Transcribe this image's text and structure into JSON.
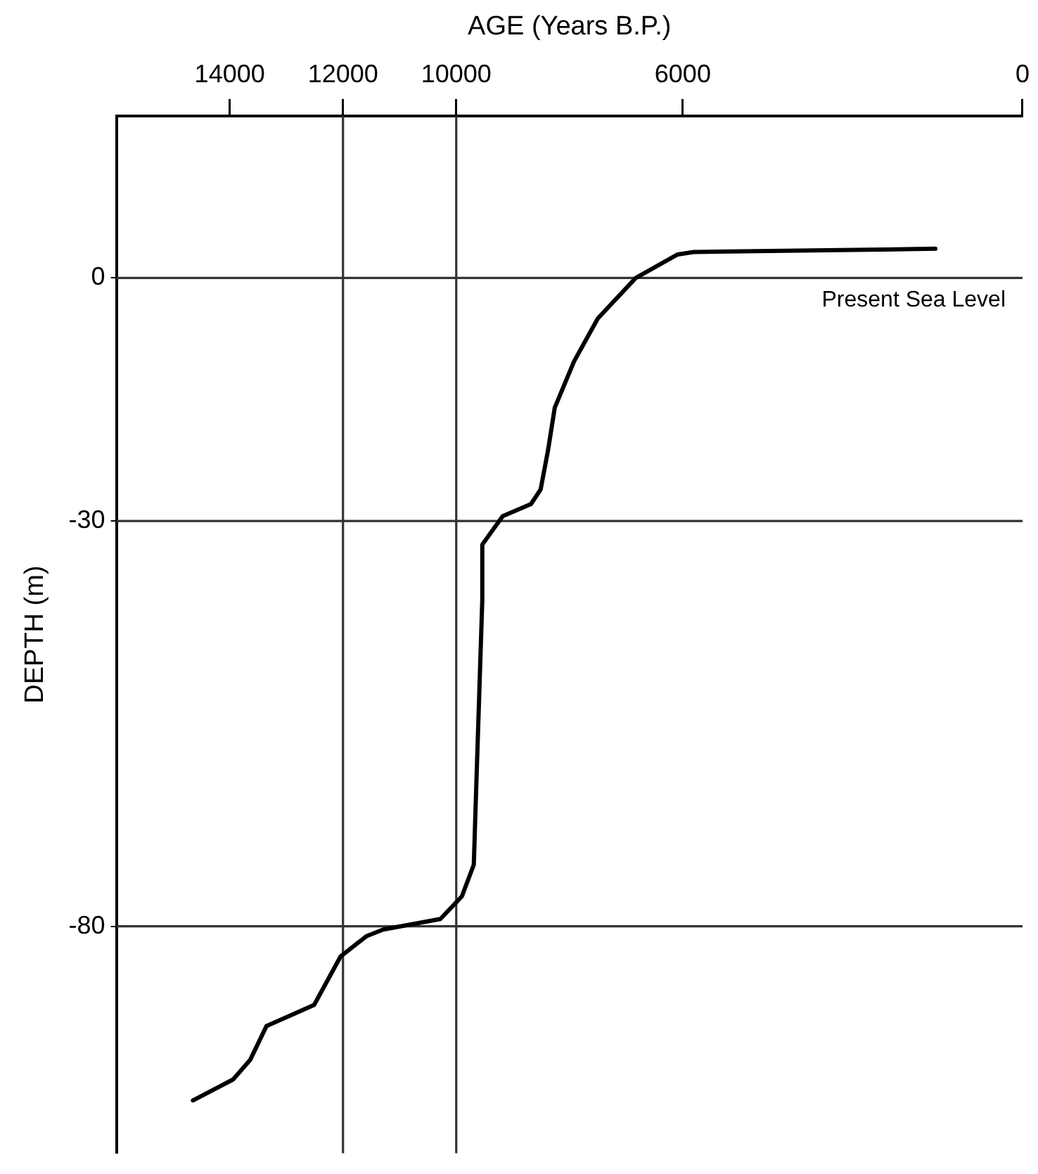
{
  "chart_data": {
    "type": "line",
    "xlabel": "AGE (Years B.P.)",
    "ylabel": "DEPTH (m)",
    "xlim": [
      16000,
      0
    ],
    "xticks": [
      14000,
      12000,
      10000,
      6000,
      0
    ],
    "ylim": [
      -108,
      20
    ],
    "yticks": [
      0,
      -30,
      -80
    ],
    "grid": false,
    "legend": false,
    "marker": "none",
    "line_style": "solid",
    "ref_lines": [
      {
        "axis": "y",
        "value": 0,
        "label": "Present Sea Level"
      },
      {
        "axis": "y",
        "value": -30
      },
      {
        "axis": "y",
        "value": -80
      },
      {
        "axis": "x",
        "value": 12000
      },
      {
        "axis": "x",
        "value": 10000
      }
    ],
    "series": [
      {
        "color": "#000000",
        "x": [
          14650,
          13940,
          13640,
          13350,
          12510,
          12040,
          11580,
          11290,
          10280,
          9900,
          9690,
          9650,
          9540,
          9540,
          9180,
          8680,
          8510,
          8380,
          8260,
          7920,
          7500,
          6830,
          6090,
          5810,
          1540
        ],
        "values": [
          -101.5,
          -98.9,
          -96.5,
          -92.3,
          -89.7,
          -83.7,
          -81.2,
          -80.4,
          -79.1,
          -76.3,
          -72.4,
          -63.5,
          -39.7,
          -32.9,
          -29.4,
          -27.9,
          -26.1,
          -21.3,
          -16,
          -10.3,
          -5.0,
          0,
          2.9,
          3.2,
          3.6
        ]
      }
    ]
  }
}
